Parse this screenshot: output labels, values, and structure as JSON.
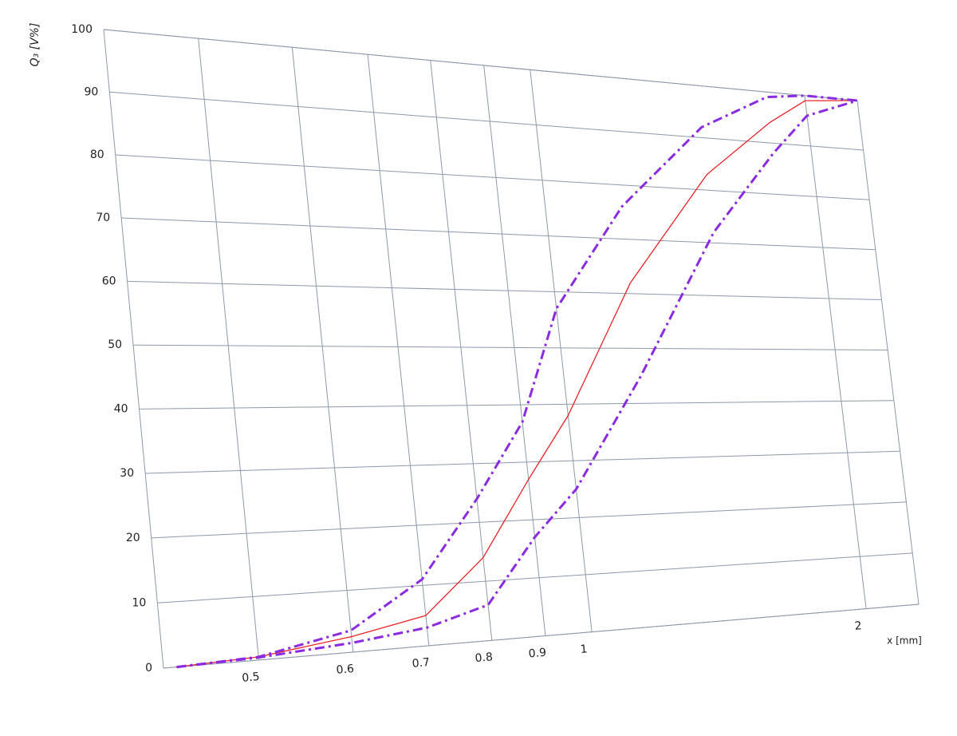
{
  "chart_data": {
    "type": "line",
    "x_label": "x [mm]",
    "y_label": "Q₃ [V%]",
    "log_x": true,
    "grid": true,
    "xlim": [
      0.42,
      2.32
    ],
    "ylim": [
      0,
      100
    ],
    "xticks": [
      0.5,
      0.6,
      0.7,
      0.8,
      0.9,
      1,
      2
    ],
    "yticks": [
      0,
      10,
      20,
      30,
      40,
      50,
      60,
      70,
      80,
      90,
      100
    ],
    "series": [
      {
        "color": "#e8232a",
        "dash": "solid",
        "x": [
          0.43,
          0.5,
          0.6,
          0.7,
          0.8,
          0.9,
          1,
          1.2,
          1.5,
          1.8,
          2,
          2.32
        ],
        "values": [
          0,
          0.5,
          2.5,
          5,
          14,
          27,
          38,
          62,
          83,
          94,
          99,
          100
        ]
      },
      {
        "color": "#8a2be2",
        "dash": "dashdot",
        "x": [
          0.43,
          0.5,
          0.6,
          0.7,
          0.8,
          0.9,
          1,
          1.2,
          1.5,
          1.8,
          2,
          2.32
        ],
        "values": [
          0,
          0.5,
          3.5,
          11,
          24,
          37,
          57,
          76,
          92,
          99,
          100,
          100
        ]
      },
      {
        "color": "#8a2be2",
        "dash": "dashdot",
        "x": [
          0.43,
          0.5,
          0.6,
          0.7,
          0.8,
          0.9,
          1,
          1.2,
          1.5,
          1.8,
          2,
          2.32
        ],
        "values": [
          0,
          0.4,
          1.5,
          3,
          6,
          17,
          25,
          45,
          72,
          88,
          96,
          100
        ]
      }
    ]
  }
}
